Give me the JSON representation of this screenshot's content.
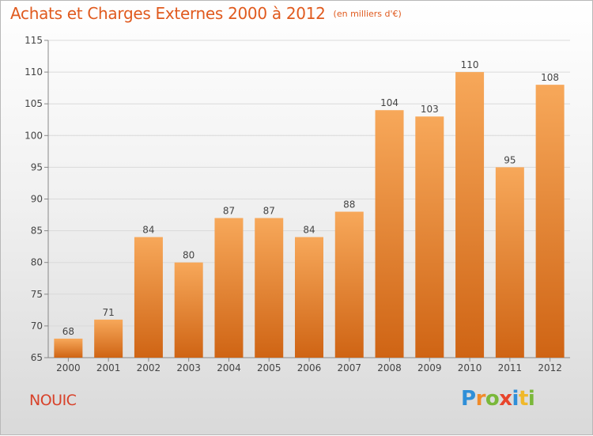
{
  "title": "Achats et Charges Externes 2000 à 2012",
  "title_unit": "(en milliers d'€)",
  "commune": "NOUIC",
  "logo": {
    "letters": [
      "P",
      "r",
      "o",
      "x",
      "i",
      "t",
      "i"
    ],
    "colors": [
      "#2f8fd8",
      "#f08b2a",
      "#7ab83a",
      "#e8452c",
      "#2f8fd8",
      "#f0b82a",
      "#7ab83a"
    ]
  },
  "colors": {
    "bar_top": "#f7a85a",
    "bar_bottom": "#cf6414",
    "title": "#e05a1e",
    "commune": "#d8422a"
  },
  "chart_data": {
    "type": "bar",
    "title": "Achats et Charges Externes 2000 à 2012",
    "categories": [
      "2000",
      "2001",
      "2002",
      "2003",
      "2004",
      "2005",
      "2006",
      "2007",
      "2008",
      "2009",
      "2010",
      "2011",
      "2012"
    ],
    "values": [
      68,
      71,
      84,
      80,
      87,
      87,
      84,
      88,
      104,
      103,
      110,
      95,
      108
    ],
    "ylim": [
      65,
      115
    ],
    "yticks": [
      65,
      70,
      75,
      80,
      85,
      90,
      95,
      100,
      105,
      110,
      115
    ],
    "grid": true,
    "xlabel": "",
    "ylabel": ""
  }
}
